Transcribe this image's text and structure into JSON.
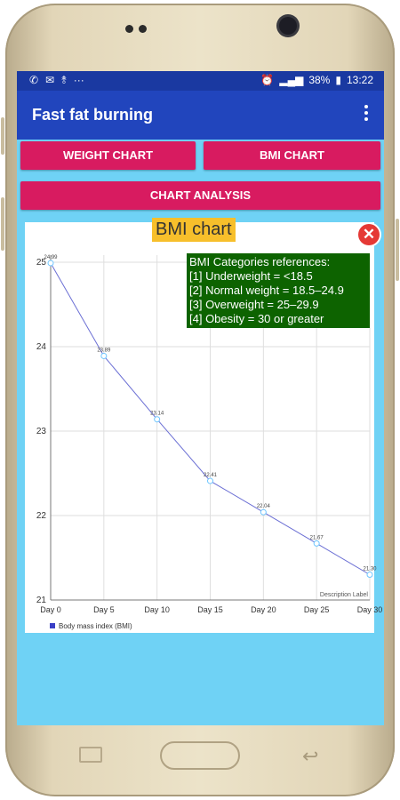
{
  "status_bar": {
    "left_icons": [
      "whatsapp-icon",
      "mail-icon",
      "usb-icon",
      "more-dots-icon"
    ],
    "left_glyphs": [
      "✆",
      "✉",
      "⥉",
      "···"
    ],
    "right_text": "38%",
    "time": "13:22"
  },
  "app_bar": {
    "title": "Fast fat burning"
  },
  "buttons": {
    "weight_chart": "WEIGHT CHART",
    "bmi_chart": "BMI CHART",
    "chart_analysis": "CHART ANALYSIS"
  },
  "chart_title": "BMI chart",
  "bmi_references": {
    "heading": "BMI Categories references:",
    "items": [
      "[1] Underweight = <18.5",
      "[2] Normal weight = 18.5–24.9",
      "[3] Overweight = 25–29.9",
      "[4] Obesity = 30 or greater"
    ]
  },
  "chart_data": {
    "type": "line",
    "x": [
      "Day 0",
      "Day 5",
      "Day 10",
      "Day 15",
      "Day 20",
      "Day 25",
      "Day 30"
    ],
    "series": [
      {
        "name": "Body mass index (BMI)",
        "values": [
          24.99,
          23.89,
          23.14,
          22.41,
          22.04,
          21.67,
          21.3
        ]
      }
    ],
    "y_ticks": [
      21,
      22,
      23,
      24,
      25
    ],
    "ylim": [
      21,
      25
    ],
    "description_label": "Description Label",
    "grid": true,
    "legend": "bottom-left",
    "line_color": "#6b6fd4"
  }
}
